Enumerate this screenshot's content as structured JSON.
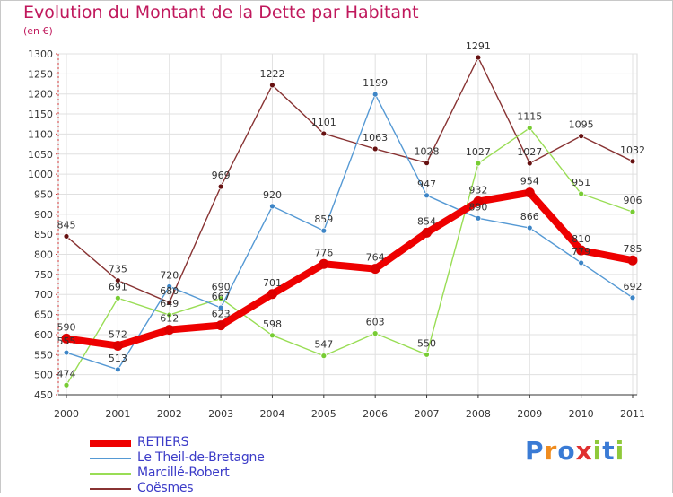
{
  "title": "Evolution du Montant de la Dette par Habitant",
  "unit_label": "(en €)",
  "logo_text": "Proxiti",
  "colors": {
    "title": "#c0185c",
    "legend_text": "#3c3cc8",
    "grid": "#e0e0e0",
    "axis": "#333333"
  },
  "chart_data": {
    "type": "line",
    "title": "Evolution du Montant de la Dette par Habitant",
    "ylabel": "(en €)",
    "x": [
      "2000",
      "2001",
      "2002",
      "2003",
      "2004",
      "2005",
      "2006",
      "2007",
      "2008",
      "2009",
      "2010",
      "2011"
    ],
    "ylim": [
      450,
      1300
    ],
    "yticks": [
      450,
      500,
      550,
      600,
      650,
      700,
      750,
      800,
      850,
      900,
      950,
      1000,
      1050,
      1100,
      1150,
      1200,
      1250,
      1300
    ],
    "grid": true,
    "legend": "bottom-left",
    "series": [
      {
        "name": "RETIERS",
        "color": "#ee0000",
        "width": 8,
        "marker_color": "#dd0000",
        "label_color": "#333333",
        "values": [
          590,
          572,
          612,
          623,
          701,
          776,
          764,
          854,
          932,
          954,
          810,
          785
        ],
        "labels": [
          "590",
          "572",
          "612",
          "623",
          "701",
          "776",
          "764",
          "854",
          "932",
          "954",
          "810",
          "785"
        ]
      },
      {
        "name": "Le Theil-de-Bretagne",
        "color": "#5599d4",
        "width": 1.4,
        "marker_color": "#3d85c6",
        "label_color": "#333333",
        "values": [
          555,
          513,
          720,
          667,
          920,
          859,
          1199,
          947,
          890,
          866,
          779,
          692
        ],
        "labels": [
          "555",
          "513",
          "720",
          "667",
          "920",
          "859",
          "1199",
          "947",
          "890",
          "866",
          "779",
          "692"
        ]
      },
      {
        "name": "Marcillé-Robert",
        "color": "#99dd55",
        "width": 1.4,
        "marker_color": "#77cc33",
        "label_color": "#333333",
        "values": [
          474,
          691,
          649,
          690,
          598,
          547,
          603,
          550,
          1027,
          1115,
          951,
          906
        ],
        "labels": [
          "474",
          "691",
          "649",
          "690",
          "598",
          "547",
          "603",
          "550",
          "1027",
          "1115",
          "951",
          "906"
        ]
      },
      {
        "name": "Coësmes",
        "color": "#883333",
        "width": 1.4,
        "marker_color": "#661111",
        "label_color": "#333333",
        "values": [
          845,
          735,
          680,
          969,
          1222,
          1101,
          1063,
          1028,
          1291,
          1027,
          1095,
          1032
        ],
        "labels": [
          "845",
          "735",
          "680",
          "969",
          "1222",
          "1101",
          "1063",
          "1028",
          "1291",
          "1027",
          "1095",
          "1032"
        ]
      }
    ]
  }
}
